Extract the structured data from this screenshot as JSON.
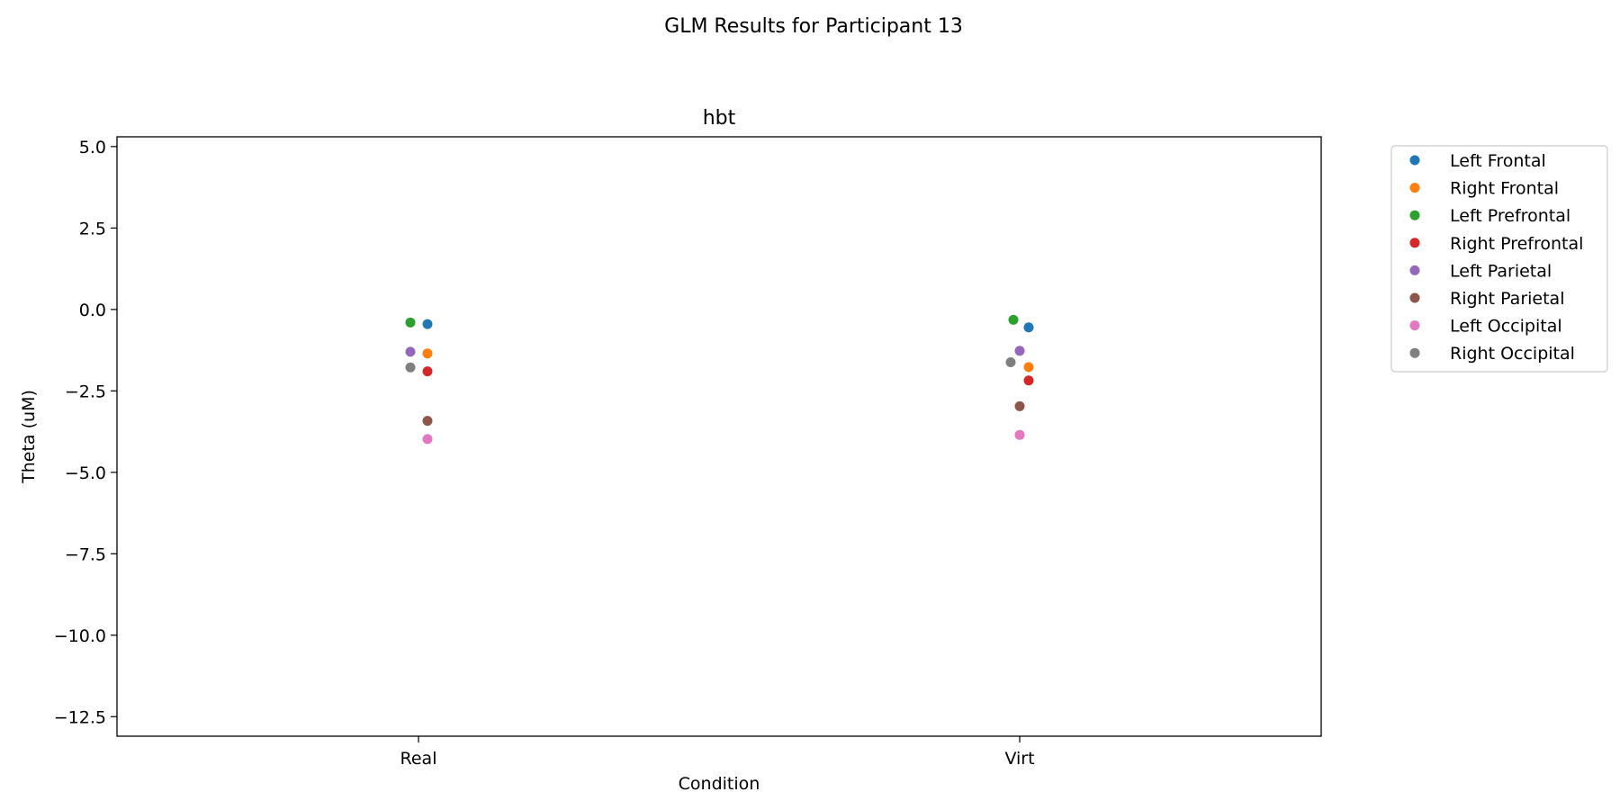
{
  "figure_title": "GLM Results for Participant 13",
  "chart_data": {
    "type": "scatter",
    "title": "hbt",
    "xlabel": "Condition",
    "ylabel": "Theta (uM)",
    "categories": [
      "Real",
      "Virt"
    ],
    "ylim": [
      -13.1,
      5.3
    ],
    "yticks": [
      5.0,
      2.5,
      0.0,
      -2.5,
      -5.0,
      -7.5,
      -10.0,
      -12.5
    ],
    "ytick_labels": [
      "5.0",
      "2.5",
      "0.0",
      "−2.5",
      "−5.0",
      "−7.5",
      "−10.0",
      "−12.5"
    ],
    "grid": false,
    "legend_position": "outside-right",
    "series": [
      {
        "name": "Left Frontal",
        "color": "#1f77b4",
        "values": [
          -0.45,
          -0.55
        ]
      },
      {
        "name": "Right Frontal",
        "color": "#ff7f0e",
        "values": [
          -1.35,
          -1.77
        ]
      },
      {
        "name": "Left Prefrontal",
        "color": "#2ca02c",
        "values": [
          -0.4,
          -0.32
        ]
      },
      {
        "name": "Right Prefrontal",
        "color": "#d62728",
        "values": [
          -1.9,
          -2.18
        ]
      },
      {
        "name": "Left Parietal",
        "color": "#9467bd",
        "values": [
          -1.3,
          -1.27
        ]
      },
      {
        "name": "Right Parietal",
        "color": "#8c564b",
        "values": [
          -3.42,
          -2.97
        ]
      },
      {
        "name": "Left Occipital",
        "color": "#e377c2",
        "values": [
          -3.98,
          -3.85
        ]
      },
      {
        "name": "Right Occipital",
        "color": "#7f7f7f",
        "values": [
          -1.78,
          -1.62
        ]
      }
    ]
  }
}
